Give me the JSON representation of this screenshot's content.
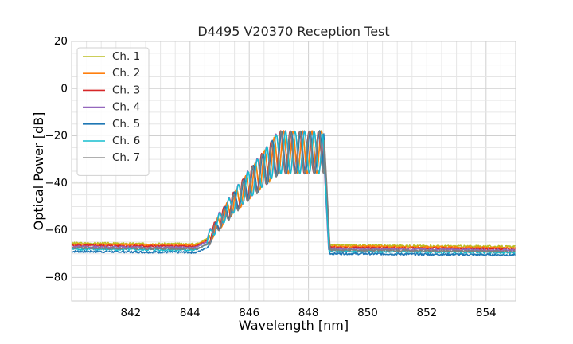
{
  "chart_data": {
    "type": "line",
    "title": "D4495 V20370 Reception Test",
    "xlabel": "Wavelength [nm]",
    "ylabel": "Optical Power [dB]",
    "xlim": [
      840.0,
      855.0
    ],
    "ylim": [
      -90,
      20
    ],
    "xticks": [
      842,
      844,
      846,
      848,
      850,
      852,
      854
    ],
    "yticks": [
      20,
      0,
      -20,
      -40,
      -60,
      -80
    ],
    "xtick_labels": [
      "842",
      "844",
      "846",
      "848",
      "850",
      "852",
      "854"
    ],
    "ytick_labels": [
      "20",
      "0",
      "−20",
      "−40",
      "−60",
      "−80"
    ],
    "grid": true,
    "grid_minor": true,
    "legend_position": "upper-left",
    "series": [
      {
        "name": "Ch. 1",
        "color": "#bcbd22",
        "floor_left": -65.5,
        "floor_right": -67.0,
        "shift": 0.0
      },
      {
        "name": "Ch. 2",
        "color": "#ff7f0e",
        "floor_left": -66.0,
        "floor_right": -67.5,
        "shift": 0.02
      },
      {
        "name": "Ch. 3",
        "color": "#d62728",
        "floor_left": -66.5,
        "floor_right": -68.0,
        "shift": -0.02
      },
      {
        "name": "Ch. 4",
        "color": "#9467bd",
        "floor_left": -67.0,
        "floor_right": -68.5,
        "shift": -0.1
      },
      {
        "name": "Ch. 5",
        "color": "#1f77b4",
        "floor_left": -69.0,
        "floor_right": -70.5,
        "shift": 0.05
      },
      {
        "name": "Ch. 6",
        "color": "#17becf",
        "floor_left": -68.0,
        "floor_right": -69.5,
        "shift": -0.05
      },
      {
        "name": "Ch. 7",
        "color": "#7f7f7f",
        "floor_left": -67.5,
        "floor_right": -69.0,
        "shift": 0.08
      }
    ],
    "band": {
      "start": 844.6,
      "end": 848.5,
      "peak": -18
    }
  }
}
